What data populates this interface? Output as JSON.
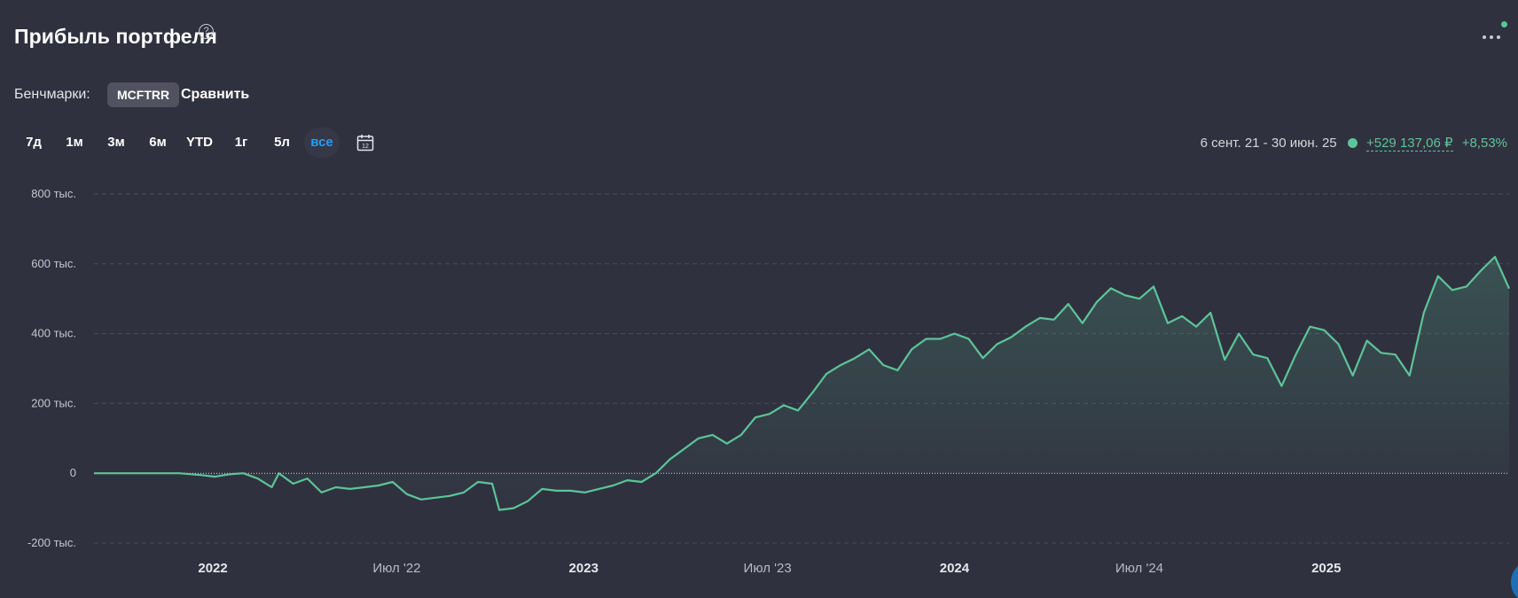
{
  "header": {
    "title": "Прибыль портфеля",
    "help_icon": "question-circle-icon",
    "more_icon": "more-dots-icon"
  },
  "benchmarks": {
    "label": "Бенчмарки:",
    "chip": "MCFTRR",
    "compare": "Сравнить"
  },
  "periods": [
    "7д",
    "1м",
    "3м",
    "6м",
    "YTD",
    "1г",
    "5л",
    "все"
  ],
  "active_period": "все",
  "calendar": {
    "icon": "calendar-icon",
    "text": "12"
  },
  "summary": {
    "range": "6 сент. 21 - 30 июн. 25",
    "profit": "+529 137,06 ₽",
    "percent": "+8,53%"
  },
  "colors": {
    "background": "#30313f",
    "line": "#5cc598",
    "active": "#2b9cf0",
    "grid": "#4a4c5a"
  },
  "chart_data": {
    "type": "area",
    "grid": true,
    "ylim": [
      -200000,
      800000
    ],
    "y_ticks": [
      {
        "value": 800000,
        "label": "800 тыс."
      },
      {
        "value": 600000,
        "label": "600 тыс."
      },
      {
        "value": 400000,
        "label": "400 тыс."
      },
      {
        "value": 200000,
        "label": "200 тыс."
      },
      {
        "value": 0,
        "label": "0"
      },
      {
        "value": -200000,
        "label": "-200 тыс."
      }
    ],
    "x_range": [
      "2021-09-06",
      "2025-06-30"
    ],
    "x_ticks": [
      {
        "date": "2022-01-01",
        "label": "2022",
        "bold": true
      },
      {
        "date": "2022-07-01",
        "label": "Июл '22",
        "bold": false
      },
      {
        "date": "2023-01-01",
        "label": "2023",
        "bold": true
      },
      {
        "date": "2023-07-01",
        "label": "Июл '23",
        "bold": false
      },
      {
        "date": "2024-01-01",
        "label": "2024",
        "bold": true
      },
      {
        "date": "2024-07-01",
        "label": "Июл '24",
        "bold": false
      },
      {
        "date": "2025-01-01",
        "label": "2025",
        "bold": true
      }
    ],
    "series": [
      {
        "points": [
          [
            "2021-09-06",
            0
          ],
          [
            "2021-09-27",
            0
          ],
          [
            "2021-10-18",
            0
          ],
          [
            "2021-11-08",
            0
          ],
          [
            "2021-11-29",
            0
          ],
          [
            "2021-12-20",
            -5000
          ],
          [
            "2022-01-03",
            -10000
          ],
          [
            "2022-01-17",
            -3000
          ],
          [
            "2022-01-31",
            0
          ],
          [
            "2022-02-14",
            -15000
          ],
          [
            "2022-02-28",
            -40000
          ],
          [
            "2022-03-07",
            0
          ],
          [
            "2022-03-21",
            -30000
          ],
          [
            "2022-04-04",
            -15000
          ],
          [
            "2022-04-18",
            -55000
          ],
          [
            "2022-05-02",
            -40000
          ],
          [
            "2022-05-16",
            -45000
          ],
          [
            "2022-05-30",
            -40000
          ],
          [
            "2022-06-13",
            -35000
          ],
          [
            "2022-06-27",
            -25000
          ],
          [
            "2022-07-11",
            -60000
          ],
          [
            "2022-07-25",
            -75000
          ],
          [
            "2022-08-08",
            -70000
          ],
          [
            "2022-08-22",
            -65000
          ],
          [
            "2022-09-05",
            -55000
          ],
          [
            "2022-09-19",
            -25000
          ],
          [
            "2022-10-03",
            -30000
          ],
          [
            "2022-10-10",
            -105000
          ],
          [
            "2022-10-24",
            -100000
          ],
          [
            "2022-11-07",
            -80000
          ],
          [
            "2022-11-21",
            -45000
          ],
          [
            "2022-12-05",
            -50000
          ],
          [
            "2022-12-19",
            -50000
          ],
          [
            "2023-01-02",
            -55000
          ],
          [
            "2023-01-16",
            -45000
          ],
          [
            "2023-01-30",
            -35000
          ],
          [
            "2023-02-13",
            -20000
          ],
          [
            "2023-02-27",
            -25000
          ],
          [
            "2023-03-13",
            0
          ],
          [
            "2023-03-27",
            40000
          ],
          [
            "2023-04-10",
            70000
          ],
          [
            "2023-04-24",
            100000
          ],
          [
            "2023-05-08",
            110000
          ],
          [
            "2023-05-22",
            85000
          ],
          [
            "2023-06-05",
            110000
          ],
          [
            "2023-06-19",
            160000
          ],
          [
            "2023-07-03",
            170000
          ],
          [
            "2023-07-17",
            195000
          ],
          [
            "2023-07-31",
            180000
          ],
          [
            "2023-08-14",
            230000
          ],
          [
            "2023-08-28",
            285000
          ],
          [
            "2023-09-11",
            310000
          ],
          [
            "2023-09-25",
            330000
          ],
          [
            "2023-10-09",
            355000
          ],
          [
            "2023-10-23",
            310000
          ],
          [
            "2023-11-06",
            295000
          ],
          [
            "2023-11-20",
            355000
          ],
          [
            "2023-12-04",
            385000
          ],
          [
            "2023-12-18",
            385000
          ],
          [
            "2024-01-01",
            400000
          ],
          [
            "2024-01-15",
            385000
          ],
          [
            "2024-01-29",
            330000
          ],
          [
            "2024-02-12",
            370000
          ],
          [
            "2024-02-26",
            390000
          ],
          [
            "2024-03-11",
            420000
          ],
          [
            "2024-03-25",
            445000
          ],
          [
            "2024-04-08",
            440000
          ],
          [
            "2024-04-22",
            485000
          ],
          [
            "2024-05-06",
            430000
          ],
          [
            "2024-05-20",
            490000
          ],
          [
            "2024-06-03",
            530000
          ],
          [
            "2024-06-17",
            510000
          ],
          [
            "2024-07-01",
            500000
          ],
          [
            "2024-07-15",
            535000
          ],
          [
            "2024-07-29",
            430000
          ],
          [
            "2024-08-12",
            450000
          ],
          [
            "2024-08-26",
            420000
          ],
          [
            "2024-09-09",
            460000
          ],
          [
            "2024-09-23",
            325000
          ],
          [
            "2024-10-07",
            400000
          ],
          [
            "2024-10-21",
            340000
          ],
          [
            "2024-11-04",
            330000
          ],
          [
            "2024-11-18",
            250000
          ],
          [
            "2024-12-02",
            340000
          ],
          [
            "2024-12-16",
            420000
          ],
          [
            "2024-12-30",
            410000
          ],
          [
            "2025-01-13",
            370000
          ],
          [
            "2025-01-27",
            280000
          ],
          [
            "2025-02-10",
            380000
          ],
          [
            "2025-02-24",
            345000
          ],
          [
            "2025-03-10",
            340000
          ],
          [
            "2025-03-24",
            280000
          ],
          [
            "2025-04-07",
            460000
          ],
          [
            "2025-04-21",
            565000
          ],
          [
            "2025-05-05",
            525000
          ],
          [
            "2025-05-19",
            535000
          ],
          [
            "2025-06-02",
            580000
          ],
          [
            "2025-06-16",
            620000
          ],
          [
            "2025-06-30",
            529137
          ]
        ]
      }
    ]
  }
}
